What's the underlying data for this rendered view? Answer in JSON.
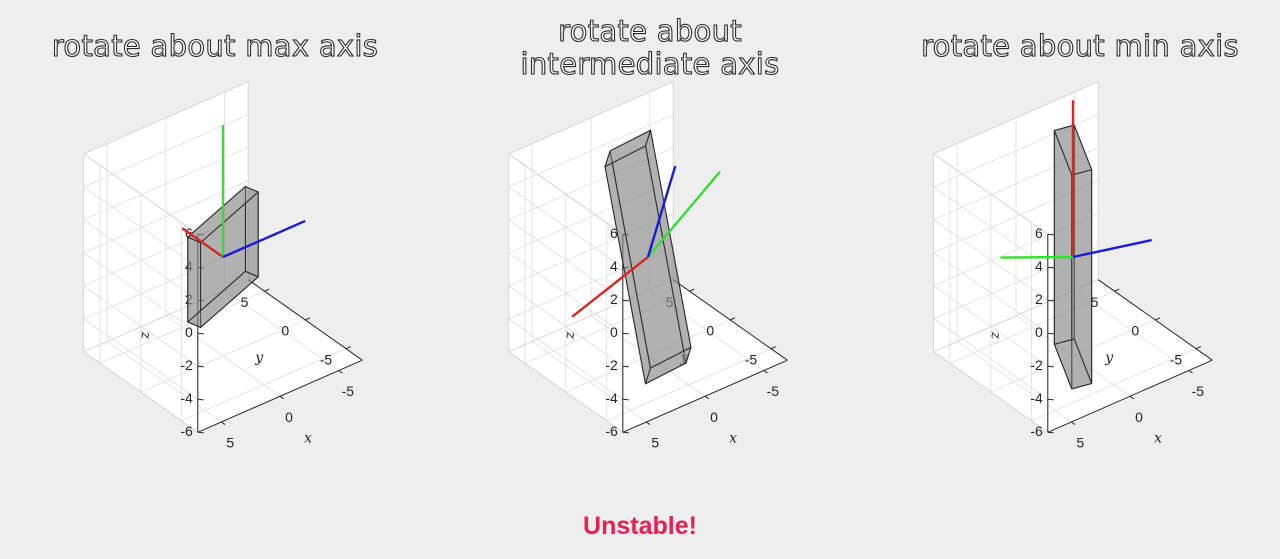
{
  "panels": [
    {
      "title": "rotate about max axis",
      "box_corners": [
        [
          -9.0,
          -2.0,
          -0.6
        ],
        [
          9.0,
          -2.0,
          -0.6
        ],
        [
          9.0,
          2.0,
          -0.6
        ],
        [
          -9.0,
          2.0,
          -0.6
        ],
        [
          -9.0,
          -2.0,
          0.6
        ],
        [
          9.0,
          -2.0,
          0.6
        ],
        [
          9.0,
          2.0,
          0.6
        ],
        [
          -9.0,
          2.0,
          0.6
        ]
      ],
      "axes_vectors": {
        "red": [
          0,
          5,
          0
        ],
        "green": [
          0,
          0,
          8
        ],
        "blue": [
          -7,
          0,
          0
        ]
      }
    },
    {
      "title": "rotate about\nintermediate axis",
      "box_corners": [
        [
          -9.0,
          -2.0,
          -0.6
        ],
        [
          9.0,
          -2.0,
          -0.6
        ],
        [
          9.0,
          2.0,
          -0.6
        ],
        [
          -9.0,
          2.0,
          -0.6
        ],
        [
          -9.0,
          -2.0,
          0.6
        ],
        [
          9.0,
          -2.0,
          0.6
        ],
        [
          9.0,
          2.0,
          0.6
        ],
        [
          -9.0,
          2.0,
          0.6
        ]
      ],
      "axes_vectors": {
        "red": [
          2.3,
          6.0,
          -5.0
        ],
        "green": [
          -3.0,
          -4.5,
          5.8
        ],
        "blue": [
          -6.0,
          5.3,
          1.8
        ]
      }
    },
    {
      "title": "rotate about min axis",
      "box_corners": [
        [
          -9.0,
          -2.0,
          -0.6
        ],
        [
          9.0,
          -2.0,
          -0.6
        ],
        [
          9.0,
          2.0,
          -0.6
        ],
        [
          -9.0,
          2.0,
          -0.6
        ],
        [
          -9.0,
          -2.0,
          0.6
        ],
        [
          9.0,
          -2.0,
          0.6
        ],
        [
          9.0,
          2.0,
          0.6
        ],
        [
          -9.0,
          2.0,
          0.6
        ]
      ],
      "axes_vectors": {
        "red": [
          0,
          0,
          9.5
        ],
        "green": [
          2,
          6,
          -1.5
        ],
        "blue": [
          -6,
          -1,
          -0.5
        ]
      }
    }
  ],
  "axes": {
    "xlabel": "x",
    "ylabel": "y",
    "zlabel": "z",
    "x_ticks": [
      "5",
      "0",
      "-5"
    ],
    "y_ticks": [
      "-5",
      "0",
      "5"
    ],
    "z_ticks": [
      "6",
      "4",
      "2",
      "0",
      "-2",
      "-4",
      "-6"
    ],
    "xlim": [
      -7,
      7
    ],
    "ylim": [
      -7,
      7
    ],
    "zlim": [
      -6,
      6
    ]
  },
  "colors": {
    "background": "#efeeef",
    "box_fill": "#8a8a8a",
    "red": "#d62727",
    "green": "#33dd33",
    "blue": "#1a1adb",
    "footer": "#e52052"
  },
  "footer": "Unstable!"
}
